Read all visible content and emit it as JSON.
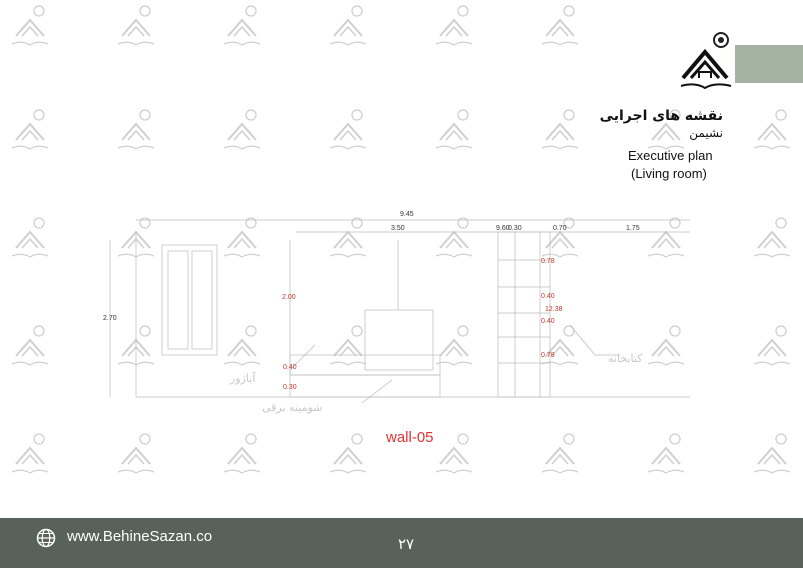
{
  "header": {
    "title_fa": "نقشه های اجرایی",
    "subtitle_fa": "نشیمن",
    "title_en": "Executive plan",
    "subtitle_en": "(Living room)"
  },
  "drawing": {
    "label": "wall-05",
    "dimensions": {
      "total_width": "9.45",
      "seg_1": "3.50",
      "seg_2a": "9.60",
      "seg_2b": "0.30",
      "seg_3": "0.70",
      "seg_4": "1.75",
      "height_total": "2.70",
      "height_window": "2.00",
      "h_040_left": "0.40",
      "h_030": "0.30",
      "shelf_078_top": "0.78",
      "shelf_040_a": "0.40",
      "shelf_1238": "12.38",
      "shelf_040_b": "0.40",
      "shelf_078_bottom": "0.78"
    },
    "annotations": {
      "tv_unit": "شومینه برقی",
      "shelf": "کتابخانه",
      "lamp": "آباژور"
    }
  },
  "footer": {
    "website": "www.BehineSazan.co",
    "page_number": "۲۷"
  },
  "colors": {
    "accent": "#a5b3a2",
    "footer_bg": "#59615c",
    "dimension_red": "#c0392b"
  }
}
